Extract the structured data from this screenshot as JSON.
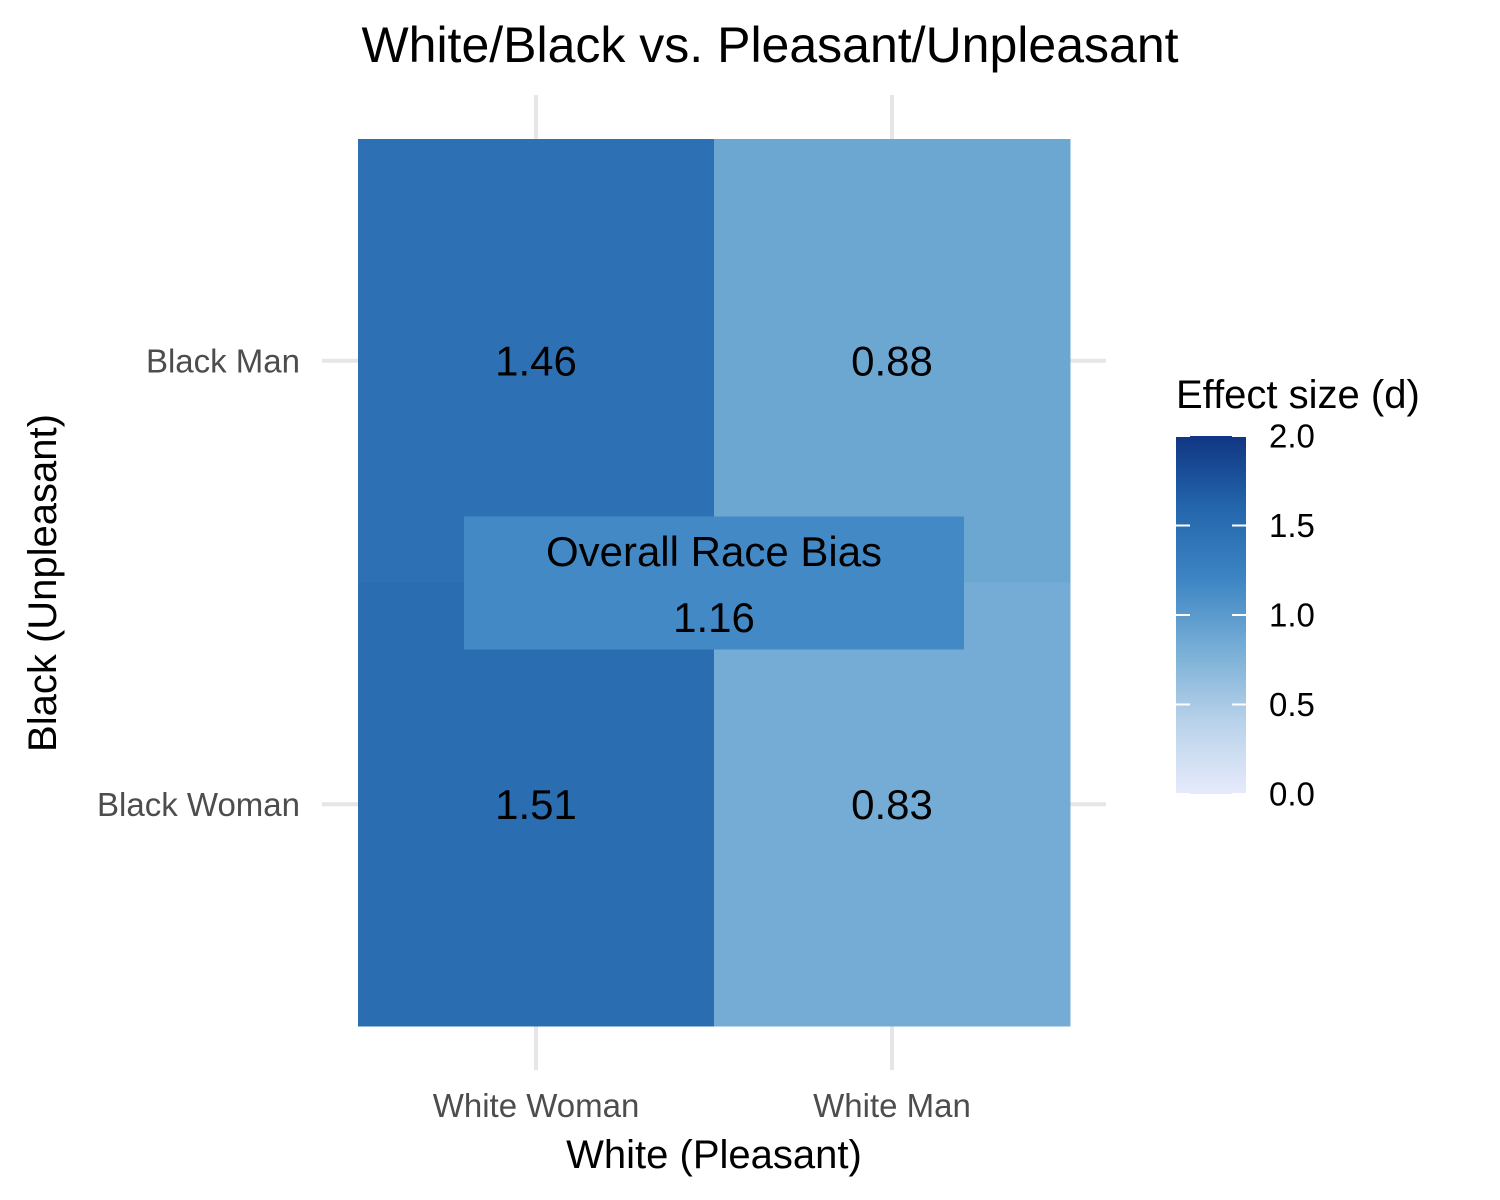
{
  "chart_data": {
    "type": "heatmap",
    "title": "White/Black vs. Pleasant/Unpleasant",
    "xlabel": "White (Pleasant)",
    "ylabel": "Black (Unpleasant)",
    "x_categories": [
      "White Woman",
      "White Man"
    ],
    "y_categories": [
      "Black Man",
      "Black Woman"
    ],
    "cells": [
      {
        "x": "White Woman",
        "y": "Black Man",
        "value": 1.46,
        "label": "1.46"
      },
      {
        "x": "White Man",
        "y": "Black Man",
        "value": 0.88,
        "label": "0.88"
      },
      {
        "x": "White Woman",
        "y": "Black Woman",
        "value": 1.51,
        "label": "1.51"
      },
      {
        "x": "White Man",
        "y": "Black Woman",
        "value": 0.83,
        "label": "0.83"
      }
    ],
    "overall": {
      "label": "Overall Race Bias",
      "value": 1.16,
      "value_label": "1.16"
    },
    "legend": {
      "title": "Effect size (d)",
      "range": [
        0,
        2
      ],
      "ticks": [
        {
          "value": 2.0,
          "label": "2.0"
        },
        {
          "value": 1.5,
          "label": "1.5"
        },
        {
          "value": 1.0,
          "label": "1.0"
        },
        {
          "value": 0.5,
          "label": "0.5"
        },
        {
          "value": 0.0,
          "label": "0.0"
        }
      ],
      "placement": "right"
    },
    "color_scale": [
      "#e6ebfb",
      "#b9d2ea",
      "#78afd6",
      "#3d85c4",
      "#2466ac",
      "#103683"
    ],
    "grid": true
  }
}
